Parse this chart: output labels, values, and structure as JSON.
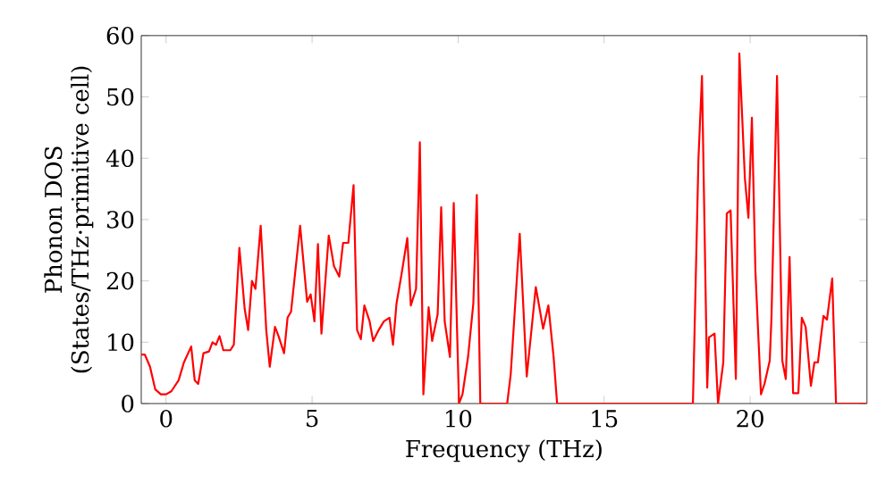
{
  "chart_data": {
    "type": "line",
    "xlabel": "Frequency (THz)",
    "ylabel": "Phonon DOS\n(States/THz·primitive cell)",
    "color": "#ff0000",
    "xlim": [
      -0.85,
      24
    ],
    "ylim": [
      0,
      60
    ],
    "xticks": [
      0,
      5,
      10,
      15,
      20
    ],
    "yticks": [
      0,
      10,
      20,
      30,
      40,
      50,
      60
    ],
    "grid": false,
    "x": [
      -0.85,
      -0.73,
      -0.55,
      -0.37,
      -0.18,
      0,
      0.18,
      0.43,
      0.61,
      0.86,
      0.98,
      1.1,
      1.28,
      1.47,
      1.59,
      1.71,
      1.83,
      1.96,
      2.2,
      2.32,
      2.51,
      2.69,
      2.81,
      2.94,
      3.06,
      3.24,
      3.43,
      3.55,
      3.73,
      3.85,
      4.04,
      4.16,
      4.28,
      4.59,
      4.83,
      4.95,
      5.08,
      5.2,
      5.32,
      5.57,
      5.75,
      5.93,
      6.06,
      6.24,
      6.42,
      6.54,
      6.67,
      6.79,
      6.97,
      7.09,
      7.28,
      7.46,
      7.65,
      7.77,
      7.89,
      8.07,
      8.26,
      8.38,
      8.56,
      8.69,
      8.81,
      8.99,
      9.11,
      9.3,
      9.42,
      9.54,
      9.72,
      9.85,
      10.03,
      10.15,
      10.34,
      10.52,
      10.64,
      10.76,
      11.68,
      11.8,
      12.11,
      12.35,
      12.66,
      12.91,
      13.09,
      13.27,
      13.39,
      17.86,
      18.04,
      18.23,
      18.35,
      18.53,
      18.59,
      18.78,
      18.9,
      19.08,
      19.2,
      19.33,
      19.51,
      19.63,
      19.82,
      19.94,
      20.06,
      20.18,
      20.37,
      20.49,
      20.67,
      20.73,
      20.92,
      21.1,
      21.22,
      21.35,
      21.47,
      21.65,
      21.77,
      21.9,
      22.08,
      22.2,
      22.32,
      22.51,
      22.63,
      22.81,
      22.94,
      24
    ],
    "values": [
      8,
      8,
      6,
      2.3,
      1.5,
      1.5,
      2,
      3.8,
      6.7,
      9.3,
      3.8,
      3.2,
      8.2,
      8.5,
      10,
      9.6,
      11,
      8.7,
      8.7,
      9.6,
      25.4,
      15.5,
      12,
      20,
      18.7,
      29,
      12,
      6,
      12.5,
      11,
      8.2,
      14,
      15,
      29,
      16.6,
      17.8,
      13.4,
      26,
      11.4,
      27.4,
      22.4,
      20.7,
      26.2,
      26.2,
      35.6,
      12,
      10.5,
      16,
      13.4,
      10.2,
      12,
      13.4,
      14,
      9.6,
      16.3,
      21.3,
      27,
      16,
      18.7,
      42.6,
      1.5,
      15.7,
      10.2,
      14.6,
      32,
      13.4,
      7.6,
      32.7,
      0,
      1.5,
      7.6,
      16.3,
      34,
      0,
      0,
      4.7,
      27.7,
      4.4,
      19,
      12.2,
      16,
      7.6,
      0,
      0,
      0,
      40,
      53.4,
      2.6,
      10.8,
      11.4,
      0,
      6.7,
      31,
      31.5,
      4,
      57.1,
      36.7,
      30.3,
      46.6,
      21.6,
      1.5,
      3.2,
      7,
      14,
      53.4,
      7,
      4,
      23.9,
      1.7,
      1.7,
      14,
      12.5,
      2.9,
      6.7,
      6.7,
      14.3,
      13.7,
      20.4,
      0,
      0
    ]
  }
}
